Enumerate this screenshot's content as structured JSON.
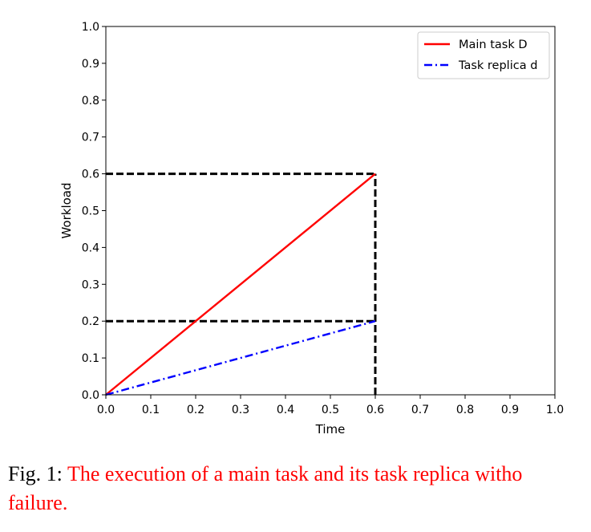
{
  "chart_data": {
    "type": "line",
    "xlabel": "Time",
    "ylabel": "Workload",
    "xlim": [
      0.0,
      1.0
    ],
    "ylim": [
      0.0,
      1.0
    ],
    "xticks": [
      "0.0",
      "0.1",
      "0.2",
      "0.3",
      "0.4",
      "0.5",
      "0.6",
      "0.7",
      "0.8",
      "0.9",
      "1.0"
    ],
    "yticks": [
      "0.0",
      "0.1",
      "0.2",
      "0.3",
      "0.4",
      "0.5",
      "0.6",
      "0.7",
      "0.8",
      "0.9",
      "1.0"
    ],
    "grid": false,
    "legend_position": "top-right",
    "series": [
      {
        "name": "Main task D",
        "color": "#ff0000",
        "style": "solid",
        "x": [
          0.0,
          0.6
        ],
        "y": [
          0.0,
          0.6
        ]
      },
      {
        "name": "Task replica d",
        "color": "#0000ff",
        "style": "dash-dot",
        "x": [
          0.0,
          0.6
        ],
        "y": [
          0.0,
          0.2
        ]
      }
    ],
    "reference_lines": [
      {
        "color": "#000000",
        "style": "dashed",
        "x": [
          0.0,
          0.6
        ],
        "y": [
          0.6,
          0.6
        ]
      },
      {
        "color": "#000000",
        "style": "dashed",
        "x": [
          0.0,
          0.6
        ],
        "y": [
          0.2,
          0.2
        ]
      },
      {
        "color": "#000000",
        "style": "dashed",
        "x": [
          0.6,
          0.6
        ],
        "y": [
          0.0,
          0.6
        ]
      }
    ]
  },
  "caption": {
    "prefix": "Fig. 1: ",
    "text": "The execution of a main task and its task replica witho",
    "continuation": "failure."
  }
}
